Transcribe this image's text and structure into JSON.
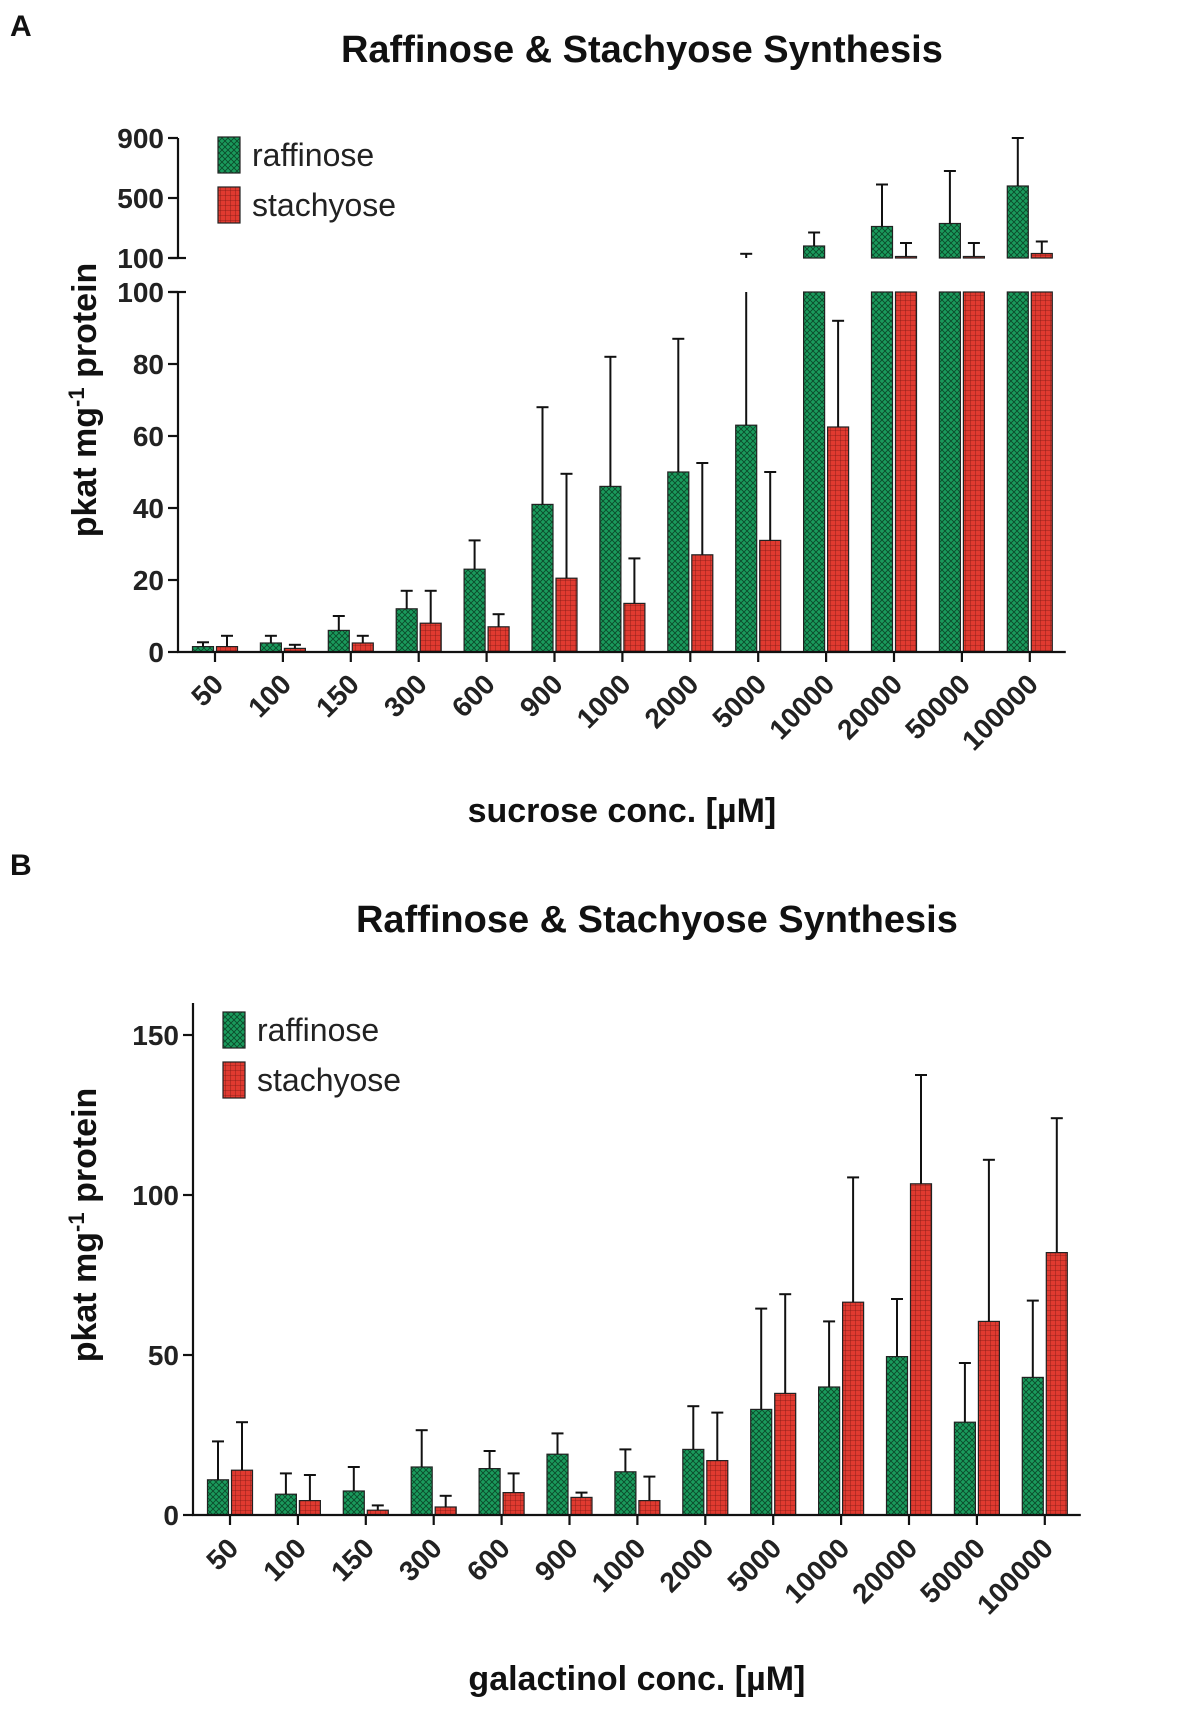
{
  "chart_data": [
    {
      "type": "bar",
      "panel_label": "A",
      "title": "Raffinose & Stachyose Synthesis",
      "xlabel": "sucrose conc. [µM]",
      "ylabel_parts": [
        "pkat mg",
        "-1",
        " protein"
      ],
      "categories": [
        "50",
        "100",
        "150",
        "300",
        "600",
        "900",
        "1000",
        "2000",
        "5000",
        "10000",
        "20000",
        "50000",
        "100000"
      ],
      "broken_axis": true,
      "ylim_lower": [
        0,
        100
      ],
      "yticks_lower": [
        0,
        20,
        40,
        60,
        80,
        100
      ],
      "ylim_upper": [
        100,
        900
      ],
      "yticks_upper": [
        100,
        500,
        900
      ],
      "series": [
        {
          "name": "raffinose",
          "color": "#1a9a5c",
          "pattern": "crosshatch",
          "values": [
            1.5,
            2.5,
            6,
            12,
            23,
            41,
            46,
            50,
            63,
            180,
            310,
            330,
            580
          ],
          "errors": [
            1.2,
            2,
            4,
            5,
            8,
            27,
            36,
            37,
            65,
            90,
            280,
            350,
            330
          ]
        },
        {
          "name": "stachyose",
          "color": "#e03a30",
          "pattern": "grid",
          "values": [
            1.5,
            1,
            2.5,
            8,
            7,
            20.5,
            13.5,
            27,
            31,
            62.5,
            110,
            110,
            130
          ],
          "errors": [
            3,
            1,
            2,
            9,
            3.5,
            29,
            12.5,
            25.5,
            19,
            29.5,
            90,
            90,
            80
          ]
        }
      ],
      "legend_position": "top-left"
    },
    {
      "type": "bar",
      "panel_label": "B",
      "title": "Raffinose & Stachyose Synthesis",
      "xlabel": "galactinol conc. [µM]",
      "ylabel_parts": [
        "pkat mg",
        "-1",
        " protein"
      ],
      "categories": [
        "50",
        "100",
        "150",
        "300",
        "600",
        "900",
        "1000",
        "2000",
        "5000",
        "10000",
        "20000",
        "50000",
        "100000"
      ],
      "ylim": [
        0,
        160
      ],
      "yticks": [
        0,
        50,
        100,
        150
      ],
      "series": [
        {
          "name": "raffinose",
          "color": "#1a9a5c",
          "pattern": "crosshatch",
          "values": [
            11,
            6.5,
            7.5,
            15,
            14.5,
            19,
            13.5,
            20.5,
            33,
            40,
            49.5,
            29,
            43
          ],
          "errors": [
            12,
            6.5,
            7.5,
            11.5,
            5.5,
            6.5,
            7,
            13.5,
            31.5,
            20.5,
            18,
            18.5,
            24
          ]
        },
        {
          "name": "stachyose",
          "color": "#e03a30",
          "pattern": "grid",
          "values": [
            14,
            4.5,
            1.5,
            2.5,
            7,
            5.5,
            4.5,
            17,
            38,
            66.5,
            103.5,
            60.5,
            82
          ],
          "errors": [
            15,
            8,
            1.5,
            3.5,
            6,
            1.5,
            7.5,
            15,
            31,
            39,
            34,
            50.5,
            42
          ]
        }
      ],
      "legend_position": "top-left"
    }
  ]
}
